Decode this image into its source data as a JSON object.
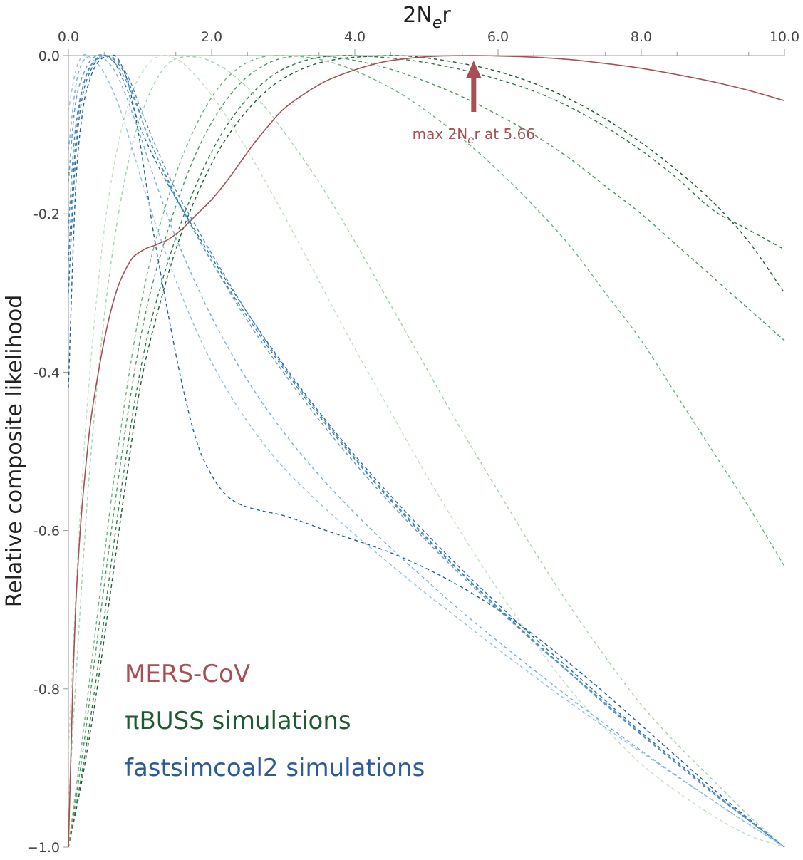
{
  "chart_data": {
    "type": "line",
    "xlabel_main": "2N",
    "xlabel_sub": "e",
    "xlabel_tail": "r",
    "ylabel": "Relative composite likelihood",
    "xlim": [
      0,
      10
    ],
    "ylim": [
      -1,
      0
    ],
    "x_axis_position": "top",
    "grid": false,
    "x_ticks": [
      {
        "value": 0,
        "label": "0.0"
      },
      {
        "value": 2,
        "label": "2.0"
      },
      {
        "value": 4,
        "label": "4.0"
      },
      {
        "value": 6,
        "label": "6.0"
      },
      {
        "value": 8,
        "label": "8.0"
      },
      {
        "value": 10,
        "label": "10.0"
      }
    ],
    "y_ticks": [
      {
        "value": 0,
        "label": "0.0"
      },
      {
        "value": -0.2,
        "label": "-0.2"
      },
      {
        "value": -0.4,
        "label": "-0.4"
      },
      {
        "value": -0.6,
        "label": "-0.6"
      },
      {
        "value": -0.8,
        "label": "-0.8"
      },
      {
        "value": -1,
        "label": "−1.0"
      }
    ],
    "annotation": {
      "prefix": "max 2N",
      "sub": "e",
      "suffix": "r at 5.66",
      "x": 5.66,
      "color": "#a65055"
    },
    "legend": [
      {
        "text": "MERS-CoV",
        "color": "#a65055"
      },
      {
        "text": "πBUSS simulations",
        "color": "#1f5a32"
      },
      {
        "text": "fastsimcoal2 simulations",
        "color": "#2c5c96"
      }
    ],
    "series": [
      {
        "group": "MERS-CoV",
        "color": "#a65055",
        "style": "solid",
        "x": [
          0,
          0.03,
          0.06,
          0.1,
          0.15,
          0.2,
          0.3,
          0.4,
          0.5,
          0.6,
          0.7,
          0.8,
          0.9,
          1.0,
          1.1,
          1.2,
          1.3,
          1.4,
          1.6,
          1.8,
          2.0,
          2.2,
          2.4,
          2.6,
          2.8,
          3.0,
          3.3,
          3.6,
          4.0,
          4.4,
          4.8,
          5.2,
          5.66,
          6.0,
          6.5,
          7.0,
          7.5,
          8.0,
          8.5,
          9.0,
          9.5,
          10.0
        ],
        "y": [
          -1.0,
          -0.9,
          -0.8,
          -0.7,
          -0.62,
          -0.56,
          -0.47,
          -0.41,
          -0.36,
          -0.32,
          -0.29,
          -0.27,
          -0.255,
          -0.248,
          -0.243,
          -0.24,
          -0.236,
          -0.232,
          -0.218,
          -0.2,
          -0.182,
          -0.16,
          -0.135,
          -0.11,
          -0.088,
          -0.068,
          -0.048,
          -0.032,
          -0.018,
          -0.008,
          -0.003,
          -0.0005,
          0.0,
          -0.0005,
          -0.002,
          -0.005,
          -0.01,
          -0.016,
          -0.024,
          -0.033,
          -0.044,
          -0.057
        ]
      },
      {
        "group": "piBUSS",
        "color": "#1a5e30",
        "style": "dashed",
        "x": [
          0,
          0.2,
          0.4,
          0.6,
          0.8,
          1.0,
          1.2,
          1.5,
          1.8,
          2.1,
          2.4,
          2.7,
          3.0,
          3.4,
          3.8,
          4.2,
          4.6,
          5.0,
          5.5,
          6.0,
          6.5,
          7.0,
          7.5,
          8.0,
          8.5,
          9.0,
          9.5,
          10.0
        ],
        "y": [
          -1.0,
          -0.91,
          -0.8,
          -0.67,
          -0.54,
          -0.42,
          -0.34,
          -0.245,
          -0.175,
          -0.12,
          -0.08,
          -0.05,
          -0.029,
          -0.012,
          -0.004,
          -0.001,
          0.0,
          -0.003,
          -0.01,
          -0.02,
          -0.035,
          -0.055,
          -0.08,
          -0.11,
          -0.145,
          -0.185,
          -0.235,
          -0.3
        ]
      },
      {
        "group": "piBUSS",
        "color": "#2e7b48",
        "style": "dashed",
        "x": [
          0,
          0.2,
          0.4,
          0.6,
          0.8,
          1.0,
          1.2,
          1.5,
          1.8,
          2.1,
          2.4,
          2.7,
          3.0,
          3.4,
          3.8,
          4.2,
          4.6,
          5.0,
          5.5,
          6.0,
          6.5,
          7.0,
          7.5,
          8.0,
          8.5,
          9.0,
          9.5,
          10.0
        ],
        "y": [
          -1.0,
          -0.9,
          -0.78,
          -0.64,
          -0.51,
          -0.4,
          -0.32,
          -0.23,
          -0.16,
          -0.105,
          -0.065,
          -0.036,
          -0.017,
          -0.004,
          0.0,
          -0.001,
          -0.004,
          -0.009,
          -0.018,
          -0.03,
          -0.045,
          -0.065,
          -0.09,
          -0.12,
          -0.155,
          -0.195,
          -0.22,
          -0.245
        ]
      },
      {
        "group": "piBUSS",
        "color": "#4a9a62",
        "style": "dashed",
        "x": [
          0,
          0.2,
          0.4,
          0.6,
          0.8,
          1.0,
          1.2,
          1.5,
          1.8,
          2.1,
          2.4,
          2.7,
          3.0,
          3.4,
          3.8,
          4.2,
          4.6,
          5.0,
          5.5,
          6.0,
          6.5,
          7.0,
          7.5,
          8.0,
          8.5,
          9.0,
          9.5,
          10.0
        ],
        "y": [
          -1.0,
          -0.88,
          -0.74,
          -0.6,
          -0.47,
          -0.36,
          -0.28,
          -0.19,
          -0.12,
          -0.07,
          -0.035,
          -0.014,
          -0.003,
          0.0,
          -0.003,
          -0.01,
          -0.02,
          -0.033,
          -0.052,
          -0.075,
          -0.1,
          -0.13,
          -0.165,
          -0.2,
          -0.24,
          -0.28,
          -0.32,
          -0.36
        ]
      },
      {
        "group": "piBUSS",
        "color": "#6bb57f",
        "style": "dashed",
        "x": [
          0,
          0.2,
          0.4,
          0.6,
          0.8,
          1.0,
          1.2,
          1.5,
          1.8,
          2.1,
          2.4,
          2.7,
          3.0,
          3.4,
          3.8,
          4.2,
          4.6,
          5.0,
          5.5,
          6.0,
          6.5,
          7.0,
          7.5,
          8.0,
          8.5,
          9.0,
          9.5,
          10.0
        ],
        "y": [
          -1.0,
          -0.86,
          -0.71,
          -0.56,
          -0.43,
          -0.32,
          -0.24,
          -0.15,
          -0.085,
          -0.04,
          -0.014,
          -0.002,
          0.0,
          -0.003,
          -0.012,
          -0.027,
          -0.046,
          -0.07,
          -0.105,
          -0.145,
          -0.19,
          -0.24,
          -0.3,
          -0.36,
          -0.43,
          -0.5,
          -0.57,
          -0.645
        ]
      },
      {
        "group": "piBUSS",
        "color": "#9fd6a4",
        "style": "dashed",
        "x": [
          0,
          0.15,
          0.3,
          0.5,
          0.7,
          0.9,
          1.1,
          1.3,
          1.5,
          1.8,
          2.1,
          2.4,
          2.7,
          3.0,
          3.5,
          4.0,
          4.5,
          5.0,
          5.5,
          6.0,
          6.5,
          7.0,
          7.5,
          8.0,
          8.5,
          9.0,
          9.5,
          10.0
        ],
        "y": [
          -0.95,
          -0.72,
          -0.52,
          -0.33,
          -0.2,
          -0.11,
          -0.055,
          -0.02,
          -0.004,
          -0.002,
          -0.012,
          -0.032,
          -0.06,
          -0.095,
          -0.16,
          -0.235,
          -0.315,
          -0.395,
          -0.475,
          -0.55,
          -0.625,
          -0.695,
          -0.76,
          -0.82,
          -0.87,
          -0.915,
          -0.96,
          -1.0
        ]
      },
      {
        "group": "piBUSS",
        "color": "#bfe3bd",
        "style": "dashed",
        "x": [
          0,
          0.15,
          0.3,
          0.5,
          0.7,
          0.9,
          1.1,
          1.3,
          1.5,
          1.7,
          2.0,
          2.3,
          2.6,
          3.0,
          3.5,
          4.0,
          4.5,
          5.0,
          5.5,
          6.0,
          6.5,
          7.0,
          7.5,
          8.0,
          8.5,
          9.0,
          9.5,
          10.0
        ],
        "y": [
          -0.88,
          -0.6,
          -0.4,
          -0.22,
          -0.11,
          -0.045,
          -0.012,
          0.0,
          -0.004,
          -0.018,
          -0.05,
          -0.09,
          -0.135,
          -0.2,
          -0.285,
          -0.37,
          -0.45,
          -0.53,
          -0.605,
          -0.675,
          -0.74,
          -0.8,
          -0.85,
          -0.895,
          -0.93,
          -0.96,
          -0.985,
          -1.0
        ]
      },
      {
        "group": "fastsimcoal2",
        "color": "#1f5f9a",
        "style": "dashed",
        "x": [
          0,
          0.1,
          0.2,
          0.3,
          0.4,
          0.5,
          0.6,
          0.65,
          0.7,
          0.8,
          0.9,
          1.0,
          1.1,
          1.2,
          1.4,
          1.6,
          1.8,
          2.0,
          2.2,
          2.4,
          2.6,
          2.8,
          3.0,
          3.3,
          3.6,
          4.0,
          4.5,
          5.0,
          5.5,
          6.0,
          6.5,
          7.0,
          7.5,
          8.0,
          8.5,
          9.0,
          9.5,
          10.0
        ],
        "y": [
          -0.42,
          -0.17,
          -0.07,
          -0.03,
          -0.01,
          -0.002,
          0.0,
          0.0,
          -0.005,
          -0.025,
          -0.06,
          -0.11,
          -0.17,
          -0.23,
          -0.33,
          -0.42,
          -0.49,
          -0.53,
          -0.555,
          -0.567,
          -0.573,
          -0.577,
          -0.581,
          -0.59,
          -0.6,
          -0.612,
          -0.628,
          -0.648,
          -0.672,
          -0.7,
          -0.732,
          -0.768,
          -0.806,
          -0.846,
          -0.886,
          -0.926,
          -0.964,
          -1.0
        ]
      },
      {
        "group": "fastsimcoal2",
        "color": "#2b6ea8",
        "style": "dashed",
        "x": [
          0,
          0.1,
          0.2,
          0.35,
          0.5,
          0.6,
          0.7,
          0.85,
          1.0,
          1.2,
          1.5,
          2.0,
          2.5,
          3.0,
          3.5,
          4.0,
          4.5,
          5.0,
          5.5,
          6.0,
          6.5,
          7.0,
          7.5,
          8.0,
          8.5,
          9.0,
          9.5,
          10.0
        ],
        "y": [
          -0.3,
          -0.13,
          -0.05,
          -0.012,
          0.0,
          -0.004,
          -0.018,
          -0.05,
          -0.09,
          -0.13,
          -0.18,
          -0.255,
          -0.325,
          -0.39,
          -0.45,
          -0.505,
          -0.556,
          -0.604,
          -0.65,
          -0.693,
          -0.735,
          -0.775,
          -0.815,
          -0.855,
          -0.892,
          -0.93,
          -0.966,
          -1.0
        ]
      },
      {
        "group": "fastsimcoal2",
        "color": "#3a7cb5",
        "style": "dashed",
        "x": [
          0,
          0.1,
          0.2,
          0.35,
          0.5,
          0.65,
          0.8,
          0.95,
          1.1,
          1.3,
          1.6,
          2.0,
          2.5,
          3.0,
          3.5,
          4.0,
          4.5,
          5.0,
          5.5,
          6.0,
          6.5,
          7.0,
          7.5,
          8.0,
          8.5,
          9.0,
          9.5,
          10.0
        ],
        "y": [
          -0.26,
          -0.11,
          -0.04,
          -0.008,
          0.0,
          -0.006,
          -0.025,
          -0.06,
          -0.1,
          -0.14,
          -0.195,
          -0.26,
          -0.33,
          -0.395,
          -0.455,
          -0.51,
          -0.562,
          -0.61,
          -0.655,
          -0.698,
          -0.74,
          -0.78,
          -0.82,
          -0.858,
          -0.895,
          -0.932,
          -0.966,
          -1.0
        ]
      },
      {
        "group": "fastsimcoal2",
        "color": "#4a8bc2",
        "style": "dashed",
        "x": [
          0,
          0.1,
          0.25,
          0.4,
          0.55,
          0.7,
          0.85,
          1.0,
          1.2,
          1.5,
          2.0,
          2.5,
          3.0,
          3.5,
          4.0,
          4.5,
          5.0,
          5.5,
          6.0,
          6.5,
          7.0,
          7.5,
          8.0,
          8.5,
          9.0,
          9.5,
          10.0
        ],
        "y": [
          -0.22,
          -0.09,
          -0.025,
          -0.004,
          0.0,
          -0.008,
          -0.03,
          -0.065,
          -0.11,
          -0.17,
          -0.25,
          -0.325,
          -0.392,
          -0.452,
          -0.508,
          -0.56,
          -0.608,
          -0.654,
          -0.697,
          -0.739,
          -0.779,
          -0.818,
          -0.857,
          -0.894,
          -0.931,
          -0.966,
          -1.0
        ]
      },
      {
        "group": "fastsimcoal2",
        "color": "#5f9bcc",
        "style": "dashed",
        "x": [
          0,
          0.1,
          0.25,
          0.4,
          0.55,
          0.7,
          0.85,
          1.0,
          1.2,
          1.5,
          2.0,
          2.5,
          3.0,
          3.5,
          4.0,
          4.5,
          5.0,
          5.5,
          6.0,
          6.5,
          7.0,
          7.5,
          8.0,
          8.5,
          9.0,
          9.5,
          10.0
        ],
        "y": [
          -0.16,
          -0.06,
          -0.015,
          0.0,
          -0.002,
          -0.015,
          -0.04,
          -0.075,
          -0.12,
          -0.18,
          -0.26,
          -0.335,
          -0.4,
          -0.46,
          -0.515,
          -0.566,
          -0.613,
          -0.658,
          -0.7,
          -0.741,
          -0.78,
          -0.819,
          -0.857,
          -0.894,
          -0.93,
          -0.965,
          -1.0
        ]
      },
      {
        "group": "fastsimcoal2",
        "color": "#7ab0d8",
        "style": "dashed",
        "x": [
          0,
          0.1,
          0.2,
          0.35,
          0.5,
          0.65,
          0.8,
          1.0,
          1.2,
          1.5,
          2.0,
          2.5,
          3.0,
          3.5,
          4.0,
          4.5,
          5.0,
          5.5,
          6.0,
          6.5,
          7.0,
          7.5,
          8.0,
          8.5,
          9.0,
          9.5,
          10.0
        ],
        "y": [
          -0.12,
          -0.04,
          -0.008,
          0.0,
          -0.004,
          -0.02,
          -0.05,
          -0.1,
          -0.155,
          -0.23,
          -0.33,
          -0.41,
          -0.475,
          -0.53,
          -0.578,
          -0.622,
          -0.663,
          -0.703,
          -0.74,
          -0.776,
          -0.811,
          -0.845,
          -0.878,
          -0.91,
          -0.941,
          -0.971,
          -1.0
        ]
      },
      {
        "group": "fastsimcoal2",
        "color": "#94c1e3",
        "style": "dashed",
        "x": [
          0,
          0.1,
          0.2,
          0.3,
          0.45,
          0.6,
          0.75,
          0.9,
          1.1,
          1.4,
          1.8,
          2.2,
          2.6,
          3.0,
          3.5,
          4.0,
          4.5,
          5.0,
          5.5,
          6.0,
          6.5,
          7.0,
          7.5,
          8.0,
          8.5,
          9.0,
          9.5,
          10.0
        ],
        "y": [
          -0.07,
          -0.02,
          0.0,
          -0.002,
          -0.015,
          -0.04,
          -0.075,
          -0.12,
          -0.18,
          -0.26,
          -0.35,
          -0.42,
          -0.475,
          -0.52,
          -0.565,
          -0.605,
          -0.643,
          -0.68,
          -0.715,
          -0.75,
          -0.784,
          -0.817,
          -0.849,
          -0.88,
          -0.911,
          -0.941,
          -0.971,
          -1.0
        ]
      }
    ]
  }
}
